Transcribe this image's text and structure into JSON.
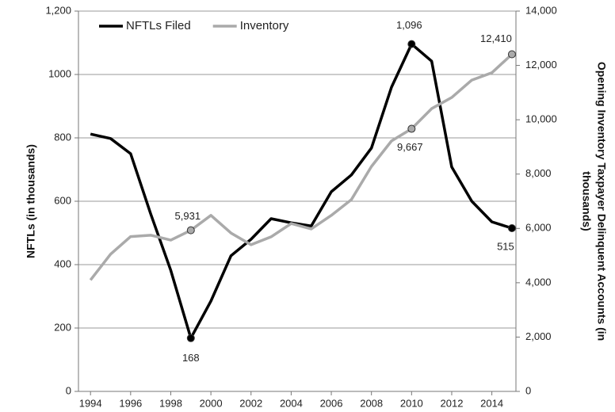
{
  "chart_data": {
    "type": "line",
    "x": [
      1994,
      1995,
      1996,
      1997,
      1998,
      1999,
      2000,
      2001,
      2002,
      2003,
      2004,
      2005,
      2006,
      2007,
      2008,
      2009,
      2010,
      2011,
      2012,
      2013,
      2014,
      2015
    ],
    "xlim": [
      1993.4,
      2015.2
    ],
    "xticks": [
      1994,
      1996,
      1998,
      2000,
      2002,
      2004,
      2006,
      2008,
      2010,
      2012,
      2014
    ],
    "ylim": [
      0,
      1200
    ],
    "yticks": [
      0,
      200,
      400,
      600,
      800,
      1000,
      {
        "value": 1200,
        "label": "1,200"
      }
    ],
    "y2lim": [
      0,
      14000
    ],
    "y2ticks": [
      0,
      {
        "value": 2000,
        "label": "2,000"
      },
      {
        "value": 4000,
        "label": "4,000"
      },
      {
        "value": 6000,
        "label": "6,000"
      },
      {
        "value": 8000,
        "label": "8,000"
      },
      {
        "value": 10000,
        "label": "10,000"
      },
      {
        "value": 12000,
        "label": "12,000"
      },
      {
        "value": 14000,
        "label": "14,000"
      }
    ],
    "ylabel": "NFTLs (in thousands)",
    "y2label": [
      "Opening Inventory Taxpayer Delinquent Accounts (in",
      "thousands)"
    ],
    "grid": true,
    "legend": "top-left",
    "series": [
      {
        "name": "NFTLs Filed",
        "color": "#000000",
        "axis": "y",
        "values": [
          812,
          798,
          750,
          560,
          382,
          168,
          285,
          428,
          480,
          545,
          532,
          522,
          630,
          683,
          768,
          960,
          1096,
          1042,
          708,
          600,
          535,
          515
        ],
        "value_labels": [
          null,
          null,
          null,
          null,
          null,
          "168",
          null,
          null,
          null,
          null,
          null,
          null,
          null,
          null,
          null,
          null,
          "1,096",
          null,
          null,
          null,
          null,
          "515"
        ]
      },
      {
        "name": "Inventory",
        "color": "#aaaaaa",
        "axis": "y2",
        "values": [
          4100,
          5050,
          5700,
          5750,
          5570,
          5931,
          6480,
          5830,
          5400,
          5690,
          6180,
          5980,
          6480,
          7060,
          8280,
          9220,
          9667,
          10410,
          10820,
          11460,
          11730,
          12410
        ],
        "value_labels": [
          null,
          null,
          null,
          null,
          null,
          "5,931",
          null,
          null,
          null,
          null,
          null,
          null,
          null,
          null,
          null,
          null,
          "9,667",
          null,
          null,
          null,
          null,
          "12,410"
        ]
      }
    ]
  }
}
